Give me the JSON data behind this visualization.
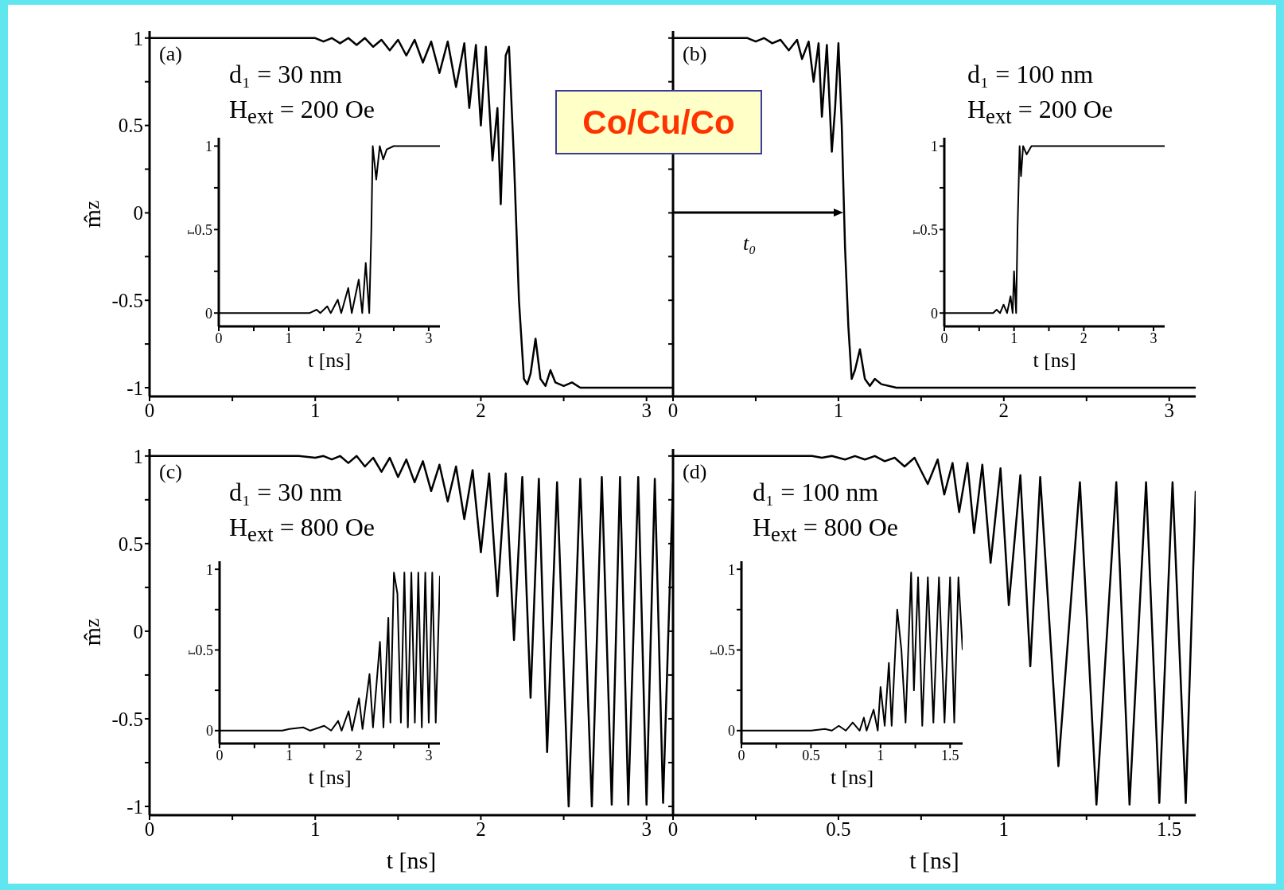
{
  "chart_data": [
    {
      "type": "line",
      "color": "#000000",
      "ylabel": "m̂$_{z}$",
      "xlim": [
        0,
        3.16
      ],
      "ylim": [
        -1.05,
        1.04
      ],
      "xticks": [
        0,
        {
          "value": 0.5,
          "label": null
        },
        1,
        {
          "value": 1.5,
          "label": null
        },
        2,
        {
          "value": 2.5,
          "label": null
        },
        3
      ],
      "yticks": [
        -1,
        {
          "value": -0.75,
          "label": null
        },
        -0.5,
        {
          "value": -0.25,
          "label": null
        },
        0,
        {
          "value": 0.25,
          "label": null
        },
        0.5,
        {
          "value": 0.75,
          "label": null
        },
        1
      ],
      "annotations": [
        "(a)",
        "d₁ = 30 nm",
        "H$_{ext}$ = 200 Oe"
      ],
      "x": [
        0,
        1.0,
        1.05,
        1.1,
        1.15,
        1.2,
        1.25,
        1.3,
        1.35,
        1.4,
        1.45,
        1.5,
        1.55,
        1.6,
        1.65,
        1.7,
        1.75,
        1.8,
        1.85,
        1.9,
        1.93,
        1.97,
        2.0,
        2.03,
        2.07,
        2.1,
        2.12,
        2.15,
        2.17,
        2.2,
        2.23,
        2.26,
        2.28,
        2.3,
        2.33,
        2.36,
        2.39,
        2.42,
        2.45,
        2.5,
        2.55,
        2.6,
        3.16
      ],
      "values": [
        1,
        1,
        0.98,
        1,
        0.97,
        1,
        0.96,
        1,
        0.95,
        0.99,
        0.93,
        0.99,
        0.9,
        0.99,
        0.86,
        0.98,
        0.8,
        0.98,
        0.72,
        0.97,
        0.6,
        0.96,
        0.5,
        0.95,
        0.3,
        0.6,
        0.05,
        0.9,
        0.95,
        0.3,
        -0.5,
        -0.95,
        -0.98,
        -0.92,
        -0.72,
        -0.95,
        -0.99,
        -0.9,
        -0.97,
        -0.99,
        -0.97,
        -1,
        -1
      ]
    },
    {
      "type": "line",
      "color": "#000000",
      "xlabel": "t [ns]",
      "ylabel": "r",
      "xlim": [
        0,
        3.16
      ],
      "ylim": [
        -0.08,
        1.05
      ],
      "xticks": [
        0,
        {
          "value": 0.5,
          "label": null
        },
        1,
        {
          "value": 1.5,
          "label": null
        },
        2,
        {
          "value": 2.5,
          "label": null
        },
        3
      ],
      "yticks": [
        0,
        {
          "value": 0.25,
          "label": null
        },
        0.5,
        {
          "value": 0.75,
          "label": null
        },
        1
      ],
      "x": [
        0,
        1.3,
        1.4,
        1.45,
        1.55,
        1.6,
        1.7,
        1.75,
        1.85,
        1.9,
        2.0,
        2.05,
        2.1,
        2.15,
        2.18,
        2.2,
        2.25,
        2.3,
        2.35,
        2.4,
        2.5,
        3.16
      ],
      "values": [
        0,
        0,
        0.02,
        0,
        0.04,
        0,
        0.08,
        0,
        0.15,
        0,
        0.2,
        0,
        0.3,
        0,
        0.5,
        1,
        0.8,
        1,
        0.92,
        0.98,
        1,
        1
      ]
    },
    {
      "type": "other",
      "title": "Co/Cu/Co"
    },
    {
      "type": "line",
      "color": "#000000",
      "tick_labels": "x",
      "xlim": [
        0,
        3.16
      ],
      "ylim": [
        -1.05,
        1.04
      ],
      "xticks": [
        0,
        {
          "value": 0.5,
          "label": null
        },
        1,
        {
          "value": 1.5,
          "label": null
        },
        2,
        {
          "value": 2.5,
          "label": null
        },
        3
      ],
      "yticks": [
        -1,
        {
          "value": -0.75,
          "label": null
        },
        -0.5,
        {
          "value": -0.25,
          "label": null
        },
        0,
        {
          "value": 0.25,
          "label": null
        },
        0.5,
        {
          "value": 0.75,
          "label": null
        },
        1
      ],
      "annotations": [
        "(b)",
        "d₁ = 100 nm",
        "H$_{ext}$ = 200 Oe",
        "t₀"
      ],
      "x": [
        0,
        0.45,
        0.5,
        0.55,
        0.6,
        0.65,
        0.7,
        0.75,
        0.78,
        0.82,
        0.85,
        0.88,
        0.9,
        0.93,
        0.96,
        0.98,
        1.0,
        1.02,
        1.04,
        1.06,
        1.08,
        1.1,
        1.13,
        1.16,
        1.19,
        1.22,
        1.26,
        1.35,
        3.16
      ],
      "values": [
        1,
        1,
        0.98,
        1,
        0.97,
        0.99,
        0.93,
        0.99,
        0.88,
        0.98,
        0.75,
        0.97,
        0.55,
        0.96,
        0.35,
        0.6,
        0.97,
        0.5,
        -0.2,
        -0.65,
        -0.95,
        -0.9,
        -0.78,
        -0.95,
        -0.99,
        -0.95,
        -0.98,
        -1,
        -1
      ]
    },
    {
      "type": "line",
      "color": "#000000",
      "xlabel": "t [ns]",
      "ylabel": "r",
      "xlim": [
        0,
        3.16
      ],
      "ylim": [
        -0.08,
        1.05
      ],
      "xticks": [
        0,
        {
          "value": 0.5,
          "label": null
        },
        1,
        {
          "value": 1.5,
          "label": null
        },
        2,
        {
          "value": 2.5,
          "label": null
        },
        3
      ],
      "yticks": [
        0,
        {
          "value": 0.25,
          "label": null
        },
        0.5,
        {
          "value": 0.75,
          "label": null
        },
        1
      ],
      "x": [
        0,
        0.7,
        0.75,
        0.8,
        0.85,
        0.9,
        0.95,
        0.98,
        1.0,
        1.03,
        1.05,
        1.08,
        1.1,
        1.13,
        1.18,
        1.25,
        3.16
      ],
      "values": [
        0,
        0,
        0.02,
        0,
        0.05,
        0,
        0.1,
        0,
        0.25,
        0,
        0.5,
        1,
        0.82,
        1,
        0.95,
        1,
        1
      ]
    },
    {
      "type": "line",
      "color": "#000000",
      "xlabel": "t [ns]",
      "ylabel": "m̂$_{z}$",
      "xlim": [
        0,
        3.16
      ],
      "ylim": [
        -1.05,
        1.04
      ],
      "xticks": [
        0,
        {
          "value": 0.5,
          "label": null
        },
        1,
        {
          "value": 1.5,
          "label": null
        },
        2,
        {
          "value": 2.5,
          "label": null
        },
        3
      ],
      "yticks": [
        -1,
        {
          "value": -0.75,
          "label": null
        },
        -0.5,
        {
          "value": -0.25,
          "label": null
        },
        0,
        {
          "value": 0.25,
          "label": null
        },
        0.5,
        {
          "value": 0.75,
          "label": null
        },
        1
      ],
      "annotations": [
        "(c)",
        "d₁ = 30 nm",
        "H$_{ext}$ = 800 Oe"
      ],
      "x": [
        0,
        0.9,
        1.0,
        1.05,
        1.1,
        1.15,
        1.2,
        1.25,
        1.3,
        1.35,
        1.4,
        1.45,
        1.5,
        1.55,
        1.6,
        1.65,
        1.7,
        1.75,
        1.8,
        1.85,
        1.9,
        1.95,
        2.0,
        2.05,
        2.1,
        2.15,
        2.2,
        2.25,
        2.3,
        2.35,
        2.4,
        2.46,
        2.53,
        2.6,
        2.67,
        2.73,
        2.79,
        2.84,
        2.89,
        2.95,
        3.0,
        3.05,
        3.1,
        3.16
      ],
      "values": [
        1,
        1,
        0.99,
        1,
        0.98,
        1,
        0.96,
        1,
        0.94,
        0.99,
        0.91,
        0.99,
        0.88,
        0.98,
        0.85,
        0.97,
        0.8,
        0.95,
        0.74,
        0.94,
        0.64,
        0.92,
        0.45,
        0.9,
        0.2,
        0.9,
        -0.05,
        0.88,
        -0.38,
        0.87,
        -0.69,
        0.85,
        -1,
        0.87,
        -1,
        0.88,
        -0.99,
        0.88,
        -0.99,
        0.88,
        -0.99,
        0.87,
        -0.98,
        0.85
      ]
    },
    {
      "type": "line",
      "color": "#000000",
      "xlabel": "t [ns]",
      "ylabel": "r",
      "xlim": [
        0,
        3.16
      ],
      "ylim": [
        -0.08,
        1.05
      ],
      "xticks": [
        0,
        {
          "value": 0.5,
          "label": null
        },
        1,
        {
          "value": 1.5,
          "label": null
        },
        2,
        {
          "value": 2.5,
          "label": null
        },
        3
      ],
      "yticks": [
        0,
        {
          "value": 0.25,
          "label": null
        },
        0.5,
        {
          "value": 0.75,
          "label": null
        },
        1
      ],
      "x": [
        0,
        0.9,
        1.0,
        1.2,
        1.3,
        1.5,
        1.6,
        1.7,
        1.75,
        1.85,
        1.9,
        2.0,
        2.05,
        2.15,
        2.2,
        2.3,
        2.35,
        2.42,
        2.45,
        2.5,
        2.55,
        2.6,
        2.65,
        2.7,
        2.75,
        2.8,
        2.85,
        2.9,
        2.95,
        3.0,
        3.05,
        3.1,
        3.16
      ],
      "values": [
        0,
        0,
        0.01,
        0.02,
        0,
        0.03,
        0,
        0.06,
        0,
        0.12,
        0,
        0.2,
        0.01,
        0.35,
        0.02,
        0.55,
        0.02,
        0.7,
        0.05,
        0.98,
        0.85,
        0.05,
        0.98,
        0.02,
        0.98,
        0.05,
        0.98,
        0.02,
        0.98,
        0.05,
        0.98,
        0.05,
        0.96
      ]
    },
    {
      "type": "line",
      "color": "#000000",
      "xlabel": "t [ns]",
      "tick_labels": "x",
      "xlim": [
        0,
        1.58
      ],
      "ylim": [
        -1.05,
        1.04
      ],
      "xticks": [
        0,
        {
          "value": 0.25,
          "label": null
        },
        0.5,
        {
          "value": 0.75,
          "label": null
        },
        1,
        {
          "value": 1.25,
          "label": null
        },
        1.5
      ],
      "yticks": [
        -1,
        {
          "value": -0.75,
          "label": null
        },
        -0.5,
        {
          "value": -0.25,
          "label": null
        },
        0,
        {
          "value": 0.25,
          "label": null
        },
        0.5,
        {
          "value": 0.75,
          "label": null
        },
        1
      ],
      "annotations": [
        "(d)",
        "d₁ = 100 nm",
        "H$_{ext}$ = 800 Oe"
      ],
      "x": [
        0,
        0.42,
        0.45,
        0.48,
        0.52,
        0.55,
        0.58,
        0.61,
        0.64,
        0.67,
        0.7,
        0.73,
        0.77,
        0.8,
        0.82,
        0.845,
        0.865,
        0.89,
        0.91,
        0.935,
        0.96,
        0.99,
        1.015,
        1.05,
        1.08,
        1.11,
        1.165,
        1.23,
        1.28,
        1.34,
        1.38,
        1.43,
        1.47,
        1.51,
        1.55,
        1.58
      ],
      "values": [
        1,
        1,
        0.99,
        1,
        0.98,
        1,
        0.98,
        1,
        0.97,
        0.99,
        0.94,
        0.99,
        0.84,
        0.98,
        0.78,
        0.96,
        0.68,
        0.96,
        0.56,
        0.95,
        0.39,
        0.93,
        0.15,
        0.89,
        -0.2,
        0.88,
        -0.77,
        0.85,
        -0.99,
        0.85,
        -0.99,
        0.85,
        -0.98,
        0.85,
        -0.98,
        0.8
      ]
    },
    {
      "type": "line",
      "color": "#000000",
      "xlabel": "t [ns]",
      "ylabel": "r",
      "xlim": [
        0,
        1.59
      ],
      "ylim": [
        -0.08,
        1.05
      ],
      "xticks": [
        0,
        {
          "value": 0.25,
          "label": null
        },
        0.5,
        {
          "value": 0.75,
          "label": null
        },
        1,
        {
          "value": 1.25,
          "label": null
        },
        1.5
      ],
      "yticks": [
        0,
        {
          "value": 0.25,
          "label": null
        },
        0.5,
        {
          "value": 0.75,
          "label": null
        },
        1
      ],
      "x": [
        0,
        0.5,
        0.6,
        0.65,
        0.7,
        0.75,
        0.8,
        0.85,
        0.88,
        0.9,
        0.95,
        0.98,
        1.0,
        1.03,
        1.06,
        1.08,
        1.12,
        1.15,
        1.18,
        1.22,
        1.24,
        1.27,
        1.3,
        1.34,
        1.38,
        1.42,
        1.46,
        1.5,
        1.53,
        1.56,
        1.59
      ],
      "values": [
        0,
        0,
        0.01,
        0,
        0.03,
        0,
        0.05,
        0,
        0.08,
        0,
        0.13,
        0,
        0.27,
        0.03,
        0.42,
        0.03,
        0.75,
        0.5,
        0.05,
        0.98,
        0.25,
        0.95,
        0.03,
        0.95,
        0.05,
        0.95,
        0.05,
        0.95,
        0.05,
        0.95,
        0.5
      ]
    }
  ]
}
